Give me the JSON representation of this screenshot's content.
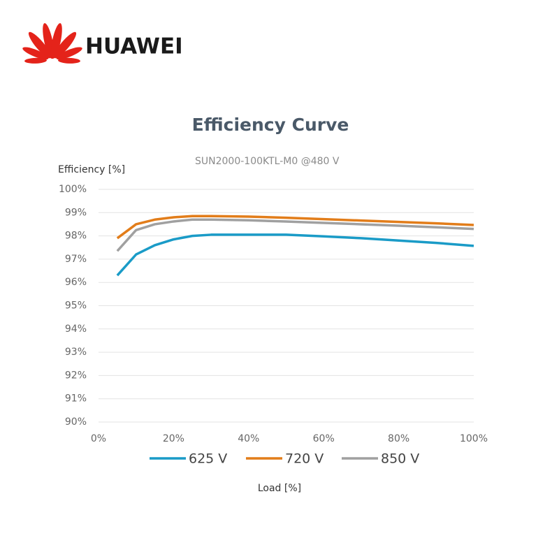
{
  "logo": "HUAWEI",
  "chart_data": {
    "type": "line",
    "title": "Efficiency Curve",
    "subtitle": "SUN2000-100KTL-M0 @480 V",
    "y_label": "Efficiency [%]",
    "x_label": "Load [%]",
    "x": [
      5,
      10,
      15,
      20,
      25,
      30,
      40,
      50,
      60,
      70,
      80,
      90,
      100
    ],
    "series": [
      {
        "name": "625 V",
        "color": "#1a9bc7",
        "values": [
          96.3,
          97.2,
          97.6,
          97.85,
          98.0,
          98.05,
          98.05,
          98.05,
          97.98,
          97.9,
          97.8,
          97.7,
          97.57
        ]
      },
      {
        "name": "720 V",
        "color": "#e27d1a",
        "values": [
          97.9,
          98.5,
          98.7,
          98.8,
          98.85,
          98.85,
          98.83,
          98.78,
          98.72,
          98.66,
          98.6,
          98.54,
          98.47
        ]
      },
      {
        "name": "850 V",
        "color": "#a0a0a0",
        "values": [
          97.35,
          98.25,
          98.5,
          98.62,
          98.7,
          98.7,
          98.67,
          98.62,
          98.56,
          98.5,
          98.44,
          98.37,
          98.3
        ]
      }
    ],
    "xlim": [
      0,
      100
    ],
    "xticks": [
      {
        "value": 0,
        "label": "0%"
      },
      {
        "value": 20,
        "label": "20%"
      },
      {
        "value": 40,
        "label": "40%"
      },
      {
        "value": 60,
        "label": "60%"
      },
      {
        "value": 80,
        "label": "80%"
      },
      {
        "value": 100,
        "label": "100%"
      }
    ],
    "ylim": [
      90,
      100
    ],
    "yticks": [
      {
        "value": 90,
        "label": "90%"
      },
      {
        "value": 91,
        "label": "91%"
      },
      {
        "value": 92,
        "label": "92%"
      },
      {
        "value": 93,
        "label": "93%"
      },
      {
        "value": 94,
        "label": "94%"
      },
      {
        "value": 95,
        "label": "95%"
      },
      {
        "value": 96,
        "label": "96%"
      },
      {
        "value": 97,
        "label": "97%"
      },
      {
        "value": 98,
        "label": "98%"
      },
      {
        "value": 99,
        "label": "99%"
      },
      {
        "value": 100,
        "label": "100%"
      }
    ],
    "grid": true,
    "legend": "bottom"
  }
}
